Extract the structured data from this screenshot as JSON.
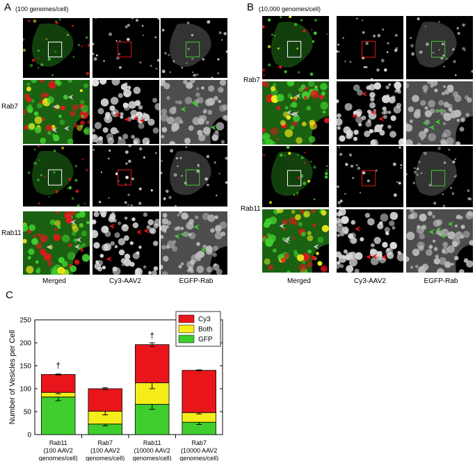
{
  "panels": {
    "A": {
      "letter": "A",
      "condition": "(100 genomes/cell)",
      "rows": [
        "Rab7",
        "Rab11"
      ]
    },
    "B": {
      "letter": "B",
      "condition": "(10,000 genomes/cell)",
      "rows": [
        "Rab7",
        "Rab11"
      ]
    },
    "C": {
      "letter": "C"
    }
  },
  "columns": [
    "Merged",
    "Cy3-AAV2",
    "EGFP-Rab"
  ],
  "colors": {
    "cy3": "#e8161b",
    "both": "#f5ec19",
    "gfp": "#3fce2e",
    "gray_arrow": "#c8c8c8"
  },
  "chart_data": {
    "type": "bar",
    "stacked": true,
    "ylabel": "Number of Vesicles per Cell",
    "xlabel": "",
    "ylim": [
      0,
      250
    ],
    "yticks": [
      0,
      50,
      100,
      150,
      200,
      250
    ],
    "categories": [
      [
        "Rab11",
        "(100 AAV2",
        "genomes/cell)"
      ],
      [
        "Rab7",
        "(100 AAV2",
        "genomes/cell)"
      ],
      [
        "Rab11",
        "(10000 AAV2",
        "genomes/cell)"
      ],
      [
        "Rab7",
        "(10000 AAV2",
        "genomes/cell)"
      ]
    ],
    "series": [
      {
        "name": "GFP",
        "color": "#3fce2e",
        "values": [
          82,
          23,
          66,
          27
        ],
        "errors": [
          8,
          4,
          11,
          5
        ]
      },
      {
        "name": "Both",
        "color": "#f5ec19",
        "values": [
          10,
          28,
          47,
          21
        ],
        "errors": [
          3,
          8,
          13,
          3
        ]
      },
      {
        "name": "Cy3",
        "color": "#e8161b",
        "values": [
          39,
          49,
          83,
          92
        ],
        "errors": [
          1,
          2,
          4,
          1
        ]
      }
    ],
    "legend": [
      "Cy3",
      "Both",
      "GFP"
    ],
    "legend_position": "top-right",
    "annotations": [
      "†",
      "†"
    ],
    "annotation_bars": [
      0,
      2
    ]
  }
}
